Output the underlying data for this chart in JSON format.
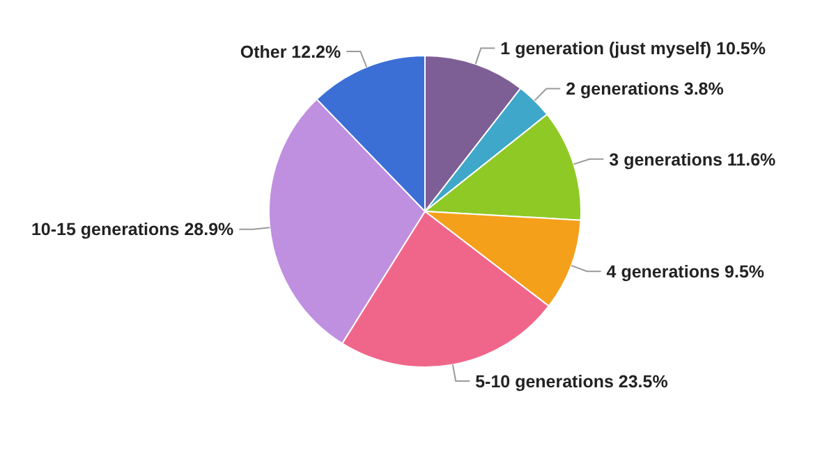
{
  "chart_data": {
    "type": "pie",
    "categories": [
      "1 generation (just myself)",
      "2 generations",
      "3 generations",
      "4 generations",
      "5-10 generations",
      "10-15 generations",
      "Other"
    ],
    "values": [
      10.5,
      3.8,
      11.6,
      9.5,
      23.5,
      28.9,
      12.2
    ],
    "value_labels": [
      "10.5%",
      "3.8%",
      "11.6%",
      "9.5%",
      "23.5%",
      "28.9%",
      "12.2%"
    ],
    "colors": [
      "#7d5f96",
      "#3fa7c9",
      "#8fc926",
      "#f5a01a",
      "#f0668a",
      "#bf8fe0",
      "#3b6fd6"
    ]
  }
}
